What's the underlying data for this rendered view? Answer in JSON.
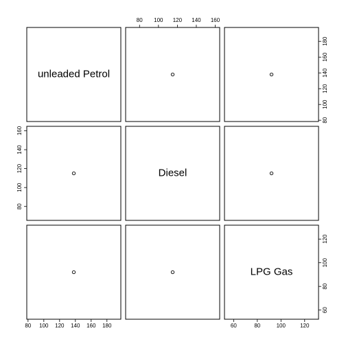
{
  "chart_data": {
    "type": "scatter_matrix",
    "variables": [
      {
        "name": "unleaded Petrol",
        "values": [
          138
        ],
        "lim": [
          78.4,
          197.6
        ],
        "ticks": [
          80,
          100,
          120,
          140,
          160,
          180
        ]
      },
      {
        "name": "Diesel",
        "values": [
          115
        ],
        "lim": [
          65.3,
          164.7
        ],
        "ticks": [
          80,
          100,
          120,
          140,
          160
        ]
      },
      {
        "name": "LPG Gas",
        "values": [
          92
        ],
        "lim": [
          52.26,
          131.74
        ],
        "ticks": [
          60,
          80,
          100,
          120
        ]
      }
    ]
  }
}
